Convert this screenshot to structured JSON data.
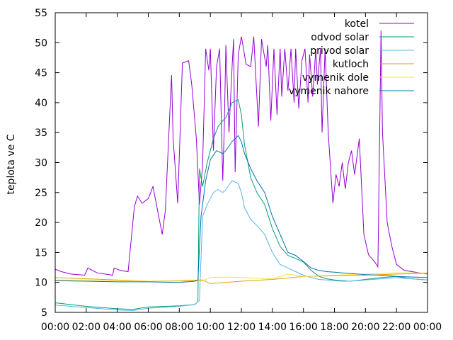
{
  "chart_data": {
    "type": "line",
    "title": "",
    "xlabel": "",
    "ylabel": "teplota ve C",
    "ylim": [
      5,
      55
    ],
    "y_ticks": [
      5,
      10,
      15,
      20,
      25,
      30,
      35,
      40,
      45,
      50,
      55
    ],
    "xlim": [
      0,
      24
    ],
    "x_ticks": [
      "00:00",
      "02:00",
      "04:00",
      "06:00",
      "08:00",
      "10:00",
      "12:00",
      "14:00",
      "16:00",
      "18:00",
      "20:00",
      "22:00",
      "00:00"
    ],
    "legend_position": "top-right",
    "grid": false,
    "series": [
      {
        "name": "kotel",
        "color": "#9400d3",
        "x": [
          0,
          0.4,
          1.0,
          1.9,
          2.1,
          2.7,
          3.7,
          3.8,
          4.2,
          4.7,
          5.1,
          5.3,
          5.6,
          6.0,
          6.3,
          6.9,
          7.1,
          7.5,
          7.6,
          7.9,
          8.2,
          8.6,
          8.8,
          9.1,
          9.3,
          9.5,
          9.7,
          9.9,
          10.0,
          10.2,
          10.4,
          10.6,
          10.8,
          10.9,
          11.0,
          11.2,
          11.4,
          11.5,
          11.6,
          11.8,
          12.0,
          12.1,
          12.3,
          12.6,
          12.8,
          13.1,
          13.3,
          13.6,
          13.7,
          13.9,
          14.1,
          14.3,
          14.5,
          14.6,
          14.8,
          15.0,
          15.2,
          15.4,
          15.5,
          15.7,
          15.9,
          16.1,
          16.3,
          16.4,
          16.6,
          16.8,
          16.9,
          17.1,
          17.2,
          17.4,
          17.6,
          17.9,
          18.1,
          18.3,
          18.5,
          18.7,
          18.9,
          19.1,
          19.3,
          19.6,
          19.9,
          20.2,
          20.6,
          20.8,
          21.0,
          21.1,
          21.4,
          21.7,
          22.0,
          22.5,
          23.0,
          23.5,
          24.0
        ],
        "values": [
          12.2,
          11.8,
          11.4,
          11.2,
          12.4,
          11.6,
          11.2,
          12.4,
          12.0,
          11.8,
          22.6,
          24.4,
          23.2,
          24.0,
          26.0,
          18.0,
          22.0,
          44.6,
          34.0,
          23.2,
          46.6,
          47.0,
          43.0,
          34.0,
          23.0,
          29.6,
          49.0,
          45.4,
          49.0,
          32.0,
          46.0,
          49.0,
          27.0,
          36.0,
          49.6,
          35.0,
          46.0,
          50.6,
          28.4,
          48.0,
          51.0,
          49.6,
          46.4,
          46.0,
          51.0,
          36.0,
          50.6,
          46.0,
          49.6,
          37.0,
          49.0,
          38.0,
          49.0,
          41.0,
          49.0,
          42.0,
          49.0,
          40.0,
          49.0,
          39.0,
          47.0,
          49.0,
          40.0,
          48.0,
          41.0,
          49.0,
          43.0,
          49.0,
          35.0,
          49.0,
          35.0,
          23.2,
          28.0,
          26.0,
          30.0,
          25.6,
          30.0,
          32.0,
          28.0,
          34.0,
          18.0,
          14.6,
          13.4,
          12.6,
          52.0,
          35.0,
          20.0,
          16.0,
          13.0,
          12.0,
          11.8,
          11.6,
          11.4
        ]
      },
      {
        "name": "odvod solar",
        "color": "#009e73",
        "x": [
          0,
          2,
          4,
          5,
          6,
          8,
          9.0,
          9.2,
          9.3,
          9.5,
          9.8,
          10.2,
          10.5,
          10.8,
          11.0,
          11.4,
          11.8,
          12.0,
          12.2,
          12.6,
          13.0,
          13.5,
          14.0,
          14.5,
          15.0,
          15.5,
          16.0,
          16.5,
          17.0,
          17.5,
          18.0,
          18.5,
          19,
          20,
          21,
          22,
          23,
          24
        ],
        "values": [
          6.6,
          6.0,
          5.6,
          5.5,
          5.9,
          6.1,
          6.3,
          6.8,
          29.0,
          26.0,
          30.0,
          34.0,
          36.0,
          37.0,
          37.5,
          40.0,
          40.5,
          38.0,
          33.0,
          27.5,
          25.0,
          23.0,
          19.0,
          16.0,
          14.5,
          14.0,
          13.4,
          12.0,
          11.0,
          10.6,
          10.4,
          10.3,
          10.2,
          10.5,
          10.8,
          11.0,
          10.6,
          10.4
        ]
      },
      {
        "name": "privod solar",
        "color": "#56b4e9",
        "x": [
          0,
          2,
          4,
          5,
          6,
          8,
          9.0,
          9.2,
          9.3,
          9.5,
          9.8,
          10.2,
          10.5,
          10.8,
          11.0,
          11.4,
          11.8,
          12.0,
          12.2,
          12.6,
          13.0,
          13.5,
          14.0,
          14.5,
          15.0,
          15.5,
          16.0,
          16.5,
          17.0,
          17.5,
          18.0,
          18.5,
          19,
          20,
          21,
          22,
          23,
          24
        ],
        "values": [
          6.2,
          5.8,
          5.4,
          5.3,
          5.7,
          6.0,
          6.3,
          6.8,
          7.0,
          21.0,
          23.0,
          25.0,
          25.5,
          25.0,
          25.5,
          27.0,
          26.5,
          25.0,
          22.5,
          20.5,
          19.5,
          18.0,
          15.0,
          13.0,
          12.4,
          11.8,
          11.2,
          10.8,
          10.5,
          10.4,
          10.3,
          10.2,
          10.2,
          10.4,
          10.6,
          10.8,
          10.6,
          10.4
        ]
      },
      {
        "name": "kutloch",
        "color": "#e69f00",
        "x": [
          0,
          2,
          4,
          6,
          8,
          9.5,
          10.0,
          11,
          12,
          14,
          16,
          18,
          20,
          22,
          24
        ],
        "values": [
          10.8,
          10.6,
          10.4,
          10.2,
          10.3,
          10.4,
          9.8,
          10.0,
          10.2,
          10.5,
          11.0,
          11.1,
          11.2,
          11.4,
          11.5
        ]
      },
      {
        "name": "vymenik dole",
        "color": "#f0e442",
        "x": [
          0,
          2,
          4,
          6,
          8,
          9.5,
          10.0,
          11,
          12,
          14,
          15,
          16,
          18,
          20,
          22,
          24
        ],
        "values": [
          10.4,
          10.4,
          10.3,
          10.2,
          10.2,
          10.3,
          10.8,
          10.9,
          10.8,
          10.6,
          11.4,
          11.0,
          11.2,
          11.4,
          11.6,
          11.6
        ]
      },
      {
        "name": "vymenik nahore",
        "color": "#0072b2",
        "x": [
          0,
          2,
          4,
          6,
          8,
          9.0,
          9.2,
          9.4,
          9.7,
          10.0,
          10.4,
          10.8,
          11.0,
          11.4,
          11.8,
          12.0,
          12.2,
          12.6,
          13.0,
          13.5,
          14.0,
          14.5,
          15.0,
          15.5,
          16.0,
          16.5,
          17.0,
          17.5,
          18.0,
          18.5,
          19,
          20,
          21,
          22,
          23,
          24
        ],
        "values": [
          10.3,
          10.2,
          10.1,
          10.1,
          10.0,
          10.2,
          10.4,
          21.0,
          27.0,
          30.5,
          32.0,
          31.5,
          32.0,
          33.5,
          34.5,
          33.5,
          31.5,
          29.0,
          27.0,
          25.0,
          21.0,
          18.0,
          15.0,
          14.5,
          13.5,
          12.4,
          12.0,
          11.8,
          11.7,
          11.6,
          11.5,
          11.3,
          11.2,
          11.0,
          10.9,
          10.8
        ]
      }
    ]
  }
}
